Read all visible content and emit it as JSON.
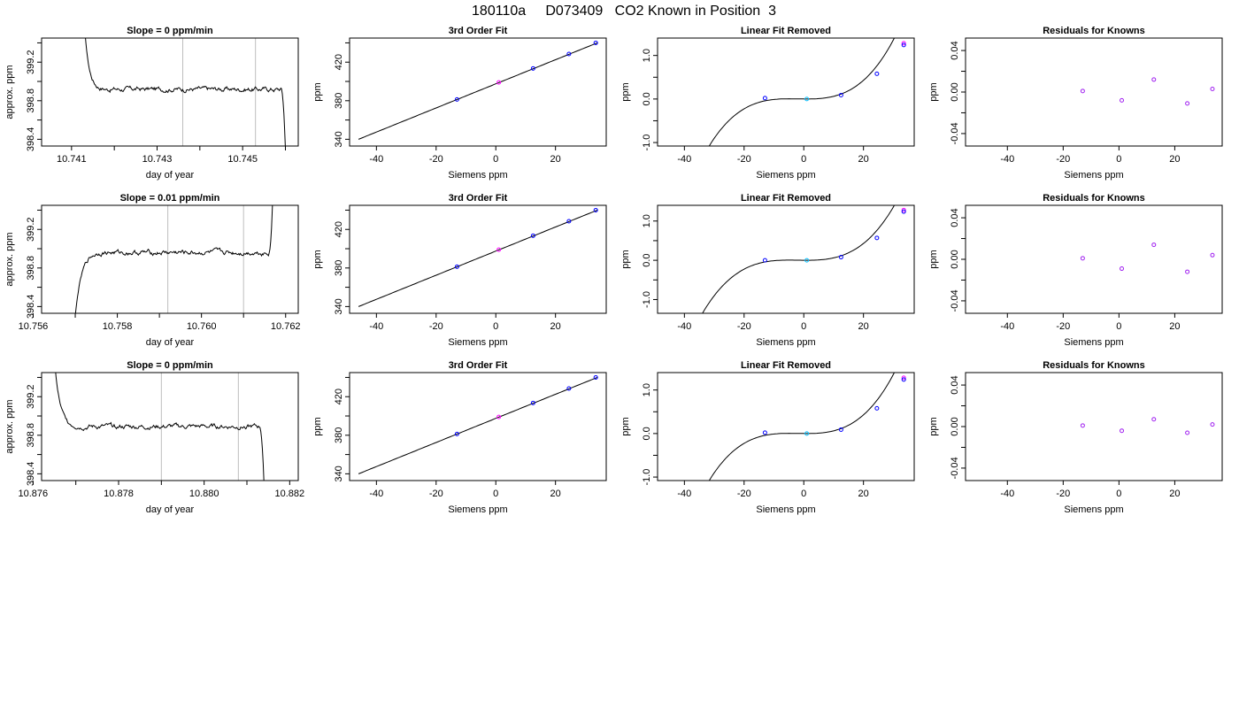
{
  "page_title": "180110a     D073409   CO2 Known in Position  3",
  "colors": {
    "line": "#000000",
    "marker_blue": "#0000ff",
    "marker_violet": "#a020f0",
    "marker_magenta": "#ff00ff",
    "marker_cyan": "#00bfff",
    "window_line": "#bebebe"
  },
  "chart_data": [
    {
      "type": "line",
      "row": 0,
      "col": 0,
      "title": "Slope =  0  ppm/min",
      "xlabel": "day of year",
      "ylabel": "approx. ppm",
      "xlim": [
        10.7403,
        10.7463
      ],
      "ylim": [
        398.33,
        399.45
      ],
      "xticks": [
        10.741,
        10.742,
        10.743,
        10.744,
        10.745,
        10.746
      ],
      "xtick_labels": [
        "10.741",
        "",
        "10.743",
        "",
        "10.745",
        ""
      ],
      "yticks": [
        398.4,
        398.6,
        398.8,
        399.0,
        399.2,
        399.4
      ],
      "ytick_labels": [
        "398.4",
        "",
        "398.8",
        "",
        "399.2",
        ""
      ],
      "window": [
        10.7436,
        10.7453
      ],
      "trace": {
        "start": 10.7413,
        "settle": 10.7418,
        "end_hold": 10.7459,
        "end": 10.746,
        "level": 398.92,
        "high": 399.6,
        "low": 398.3
      }
    },
    {
      "type": "scatter",
      "row": 0,
      "col": 1,
      "title": "3rd Order Fit",
      "xlabel": "Siemens ppm",
      "ylabel": "ppm",
      "xlim": [
        -49,
        37
      ],
      "ylim": [
        333,
        445
      ],
      "xticks": [
        -40,
        -20,
        0,
        20
      ],
      "xtick_labels": [
        "-40",
        "-20",
        "0",
        "20"
      ],
      "yticks": [
        340,
        360,
        380,
        400,
        420,
        440
      ],
      "ytick_labels": [
        "340",
        "",
        "380",
        "",
        "420",
        ""
      ],
      "curve": {
        "x0": -46,
        "x1": 34,
        "y0": 340,
        "y1": 440
      },
      "points": [
        {
          "x": -13.0,
          "y": 381.3,
          "color": "marker_blue"
        },
        {
          "x": 1.0,
          "y": 399.0,
          "color": "marker_magenta"
        },
        {
          "x": 12.5,
          "y": 413.5,
          "color": "marker_blue"
        },
        {
          "x": 24.5,
          "y": 428.5,
          "color": "marker_blue"
        },
        {
          "x": 33.5,
          "y": 440.0,
          "color": "marker_blue"
        }
      ]
    },
    {
      "type": "scatter",
      "row": 0,
      "col": 2,
      "title": "Linear Fit Removed",
      "xlabel": "Siemens ppm",
      "ylabel": "ppm",
      "xlim": [
        -49,
        37
      ],
      "ylim": [
        -1.08,
        1.4
      ],
      "xticks": [
        -40,
        -20,
        0,
        20
      ],
      "xtick_labels": [
        "-40",
        "-20",
        "0",
        "20"
      ],
      "yticks": [
        -1.0,
        -0.5,
        0.0,
        0.5,
        1.0
      ],
      "ytick_labels": [
        "-1.0",
        "",
        "0.0",
        "",
        "1.0"
      ],
      "curve": {
        "x0": -46,
        "x1": 33.5,
        "a": 4.25e-05,
        "shift": 2.5,
        "offset": 0.0
      },
      "points": [
        {
          "x": -13.0,
          "y": 0.02,
          "color": "marker_blue"
        },
        {
          "x": 1.0,
          "y": 0.0,
          "color": "marker_cyan"
        },
        {
          "x": 12.5,
          "y": 0.09,
          "color": "marker_blue"
        },
        {
          "x": 24.5,
          "y": 0.58,
          "color": "marker_blue"
        },
        {
          "x": 33.5,
          "y": 1.28,
          "color": "marker_magenta"
        },
        {
          "x": 33.5,
          "y": 1.24,
          "color": "marker_blue"
        }
      ]
    },
    {
      "type": "scatter",
      "row": 0,
      "col": 3,
      "title": "Residuals for Knowns",
      "xlabel": "Siemens ppm",
      "ylabel": "ppm",
      "xlim": [
        -55,
        37
      ],
      "ylim": [
        -0.052,
        0.052
      ],
      "xticks": [
        -40,
        -20,
        0,
        20
      ],
      "xtick_labels": [
        "-40",
        "-20",
        "0",
        "20"
      ],
      "yticks": [
        -0.04,
        -0.02,
        0.0,
        0.02,
        0.04
      ],
      "ytick_labels": [
        "-0.04",
        "",
        "0.00",
        "",
        "0.04"
      ],
      "points": [
        {
          "x": -13.0,
          "y": 0.001,
          "color": "marker_violet"
        },
        {
          "x": 1.0,
          "y": -0.008,
          "color": "marker_violet"
        },
        {
          "x": 12.5,
          "y": 0.012,
          "color": "marker_violet"
        },
        {
          "x": 24.5,
          "y": -0.011,
          "color": "marker_violet"
        },
        {
          "x": 33.5,
          "y": 0.003,
          "color": "marker_violet"
        }
      ]
    },
    {
      "type": "line",
      "row": 1,
      "col": 0,
      "title": "Slope =  0.01  ppm/min",
      "xlabel": "day of year",
      "ylabel": "approx. ppm",
      "xlim": [
        10.7562,
        10.7623
      ],
      "ylim": [
        398.33,
        399.45
      ],
      "xticks": [
        10.756,
        10.757,
        10.758,
        10.759,
        10.76,
        10.761,
        10.762
      ],
      "xtick_labels": [
        "10.756",
        "",
        "10.758",
        "",
        "10.760",
        "",
        "10.762"
      ],
      "yticks": [
        398.4,
        398.6,
        398.8,
        399.0,
        399.2,
        399.4
      ],
      "ytick_labels": [
        "398.4",
        "",
        "398.8",
        "",
        "399.2",
        ""
      ],
      "window": [
        10.7592,
        10.761
      ],
      "trace": {
        "start": 10.757,
        "settle": 10.7576,
        "end_hold": 10.7616,
        "end": 10.7617,
        "level": 398.96,
        "high": 399.6,
        "low": 398.3,
        "rising": true
      }
    },
    {
      "type": "scatter",
      "row": 1,
      "col": 1,
      "title": "3rd Order Fit",
      "xlabel": "Siemens ppm",
      "ylabel": "ppm",
      "xlim": [
        -49,
        37
      ],
      "ylim": [
        333,
        445
      ],
      "xticks": [
        -40,
        -20,
        0,
        20
      ],
      "xtick_labels": [
        "-40",
        "-20",
        "0",
        "20"
      ],
      "yticks": [
        340,
        360,
        380,
        400,
        420,
        440
      ],
      "ytick_labels": [
        "340",
        "",
        "380",
        "",
        "420",
        ""
      ],
      "curve": {
        "x0": -46,
        "x1": 34,
        "y0": 340,
        "y1": 440
      },
      "points": [
        {
          "x": -13.0,
          "y": 381.3,
          "color": "marker_blue"
        },
        {
          "x": 1.0,
          "y": 399.0,
          "color": "marker_magenta"
        },
        {
          "x": 12.5,
          "y": 413.5,
          "color": "marker_blue"
        },
        {
          "x": 24.5,
          "y": 428.5,
          "color": "marker_blue"
        },
        {
          "x": 33.5,
          "y": 440.0,
          "color": "marker_blue"
        }
      ]
    },
    {
      "type": "scatter",
      "row": 1,
      "col": 2,
      "title": "Linear Fit Removed",
      "xlabel": "Siemens ppm",
      "ylabel": "ppm",
      "xlim": [
        -49,
        37
      ],
      "ylim": [
        -1.35,
        1.4
      ],
      "xticks": [
        -40,
        -20,
        0,
        20
      ],
      "xtick_labels": [
        "-40",
        "-20",
        "0",
        "20"
      ],
      "yticks": [
        -1.0,
        -0.5,
        0.0,
        0.5,
        1.0
      ],
      "ytick_labels": [
        "-1.0",
        "",
        "0.0",
        "",
        "1.0"
      ],
      "curve": {
        "x0": -45,
        "x1": 33.5,
        "a": 4.25e-05,
        "shift": 2.5,
        "offset": 0.0
      },
      "points": [
        {
          "x": -13.0,
          "y": 0.0,
          "color": "marker_blue"
        },
        {
          "x": 1.0,
          "y": 0.0,
          "color": "marker_cyan"
        },
        {
          "x": 12.5,
          "y": 0.08,
          "color": "marker_blue"
        },
        {
          "x": 24.5,
          "y": 0.57,
          "color": "marker_blue"
        },
        {
          "x": 33.5,
          "y": 1.28,
          "color": "marker_magenta"
        },
        {
          "x": 33.5,
          "y": 1.24,
          "color": "marker_blue"
        }
      ]
    },
    {
      "type": "scatter",
      "row": 1,
      "col": 3,
      "title": "Residuals for Knowns",
      "xlabel": "Siemens ppm",
      "ylabel": "ppm",
      "xlim": [
        -55,
        37
      ],
      "ylim": [
        -0.052,
        0.052
      ],
      "xticks": [
        -40,
        -20,
        0,
        20
      ],
      "xtick_labels": [
        "-40",
        "-20",
        "0",
        "20"
      ],
      "yticks": [
        -0.04,
        -0.02,
        0.0,
        0.02,
        0.04
      ],
      "ytick_labels": [
        "-0.04",
        "",
        "0.00",
        "",
        "0.04"
      ],
      "points": [
        {
          "x": -13.0,
          "y": 0.001,
          "color": "marker_violet"
        },
        {
          "x": 1.0,
          "y": -0.009,
          "color": "marker_violet"
        },
        {
          "x": 12.5,
          "y": 0.014,
          "color": "marker_violet"
        },
        {
          "x": 24.5,
          "y": -0.012,
          "color": "marker_violet"
        },
        {
          "x": 33.5,
          "y": 0.004,
          "color": "marker_violet"
        }
      ]
    },
    {
      "type": "line",
      "row": 2,
      "col": 0,
      "title": "Slope =  0  ppm/min",
      "xlabel": "day of year",
      "ylabel": "approx. ppm",
      "xlim": [
        10.8762,
        10.8822
      ],
      "ylim": [
        398.33,
        399.45
      ],
      "xticks": [
        10.876,
        10.877,
        10.878,
        10.879,
        10.88,
        10.881,
        10.882
      ],
      "xtick_labels": [
        "10.876",
        "",
        "10.878",
        "",
        "10.880",
        "",
        "10.882"
      ],
      "yticks": [
        398.4,
        398.6,
        398.8,
        399.0,
        399.2,
        399.4
      ],
      "ytick_labels": [
        "398.4",
        "",
        "398.8",
        "",
        "399.2",
        ""
      ],
      "window": [
        10.879,
        10.8808
      ],
      "trace": {
        "start": 10.8765,
        "settle": 10.8771,
        "end_hold": 10.8813,
        "end": 10.8814,
        "level": 398.89,
        "high": 399.6,
        "low": 398.3
      }
    },
    {
      "type": "scatter",
      "row": 2,
      "col": 1,
      "title": "3rd Order Fit",
      "xlabel": "Siemens ppm",
      "ylabel": "ppm",
      "xlim": [
        -49,
        37
      ],
      "ylim": [
        333,
        445
      ],
      "xticks": [
        -40,
        -20,
        0,
        20
      ],
      "xtick_labels": [
        "-40",
        "-20",
        "0",
        "20"
      ],
      "yticks": [
        340,
        360,
        380,
        400,
        420,
        440
      ],
      "ytick_labels": [
        "340",
        "",
        "380",
        "",
        "420",
        ""
      ],
      "curve": {
        "x0": -46,
        "x1": 34,
        "y0": 340,
        "y1": 440
      },
      "points": [
        {
          "x": -13.0,
          "y": 381.3,
          "color": "marker_blue"
        },
        {
          "x": 1.0,
          "y": 399.0,
          "color": "marker_magenta"
        },
        {
          "x": 12.5,
          "y": 413.5,
          "color": "marker_blue"
        },
        {
          "x": 24.5,
          "y": 428.5,
          "color": "marker_blue"
        },
        {
          "x": 33.5,
          "y": 440.0,
          "color": "marker_blue"
        }
      ]
    },
    {
      "type": "scatter",
      "row": 2,
      "col": 2,
      "title": "Linear Fit Removed",
      "xlabel": "Siemens ppm",
      "ylabel": "ppm",
      "xlim": [
        -49,
        37
      ],
      "ylim": [
        -1.08,
        1.4
      ],
      "xticks": [
        -40,
        -20,
        0,
        20
      ],
      "xtick_labels": [
        "-40",
        "-20",
        "0",
        "20"
      ],
      "yticks": [
        -1.0,
        -0.5,
        0.0,
        0.5,
        1.0
      ],
      "ytick_labels": [
        "-1.0",
        "",
        "0.0",
        "",
        "1.0"
      ],
      "curve": {
        "x0": -46,
        "x1": 33.5,
        "a": 4.25e-05,
        "shift": 2.5,
        "offset": 0.0
      },
      "points": [
        {
          "x": -13.0,
          "y": 0.02,
          "color": "marker_blue"
        },
        {
          "x": 1.0,
          "y": 0.0,
          "color": "marker_cyan"
        },
        {
          "x": 12.5,
          "y": 0.09,
          "color": "marker_blue"
        },
        {
          "x": 24.5,
          "y": 0.58,
          "color": "marker_blue"
        },
        {
          "x": 33.5,
          "y": 1.28,
          "color": "marker_magenta"
        },
        {
          "x": 33.5,
          "y": 1.24,
          "color": "marker_blue"
        }
      ]
    },
    {
      "type": "scatter",
      "row": 2,
      "col": 3,
      "title": "Residuals for Knowns",
      "xlabel": "Siemens ppm",
      "ylabel": "ppm",
      "xlim": [
        -55,
        37
      ],
      "ylim": [
        -0.052,
        0.052
      ],
      "xticks": [
        -40,
        -20,
        0,
        20
      ],
      "xtick_labels": [
        "-40",
        "-20",
        "0",
        "20"
      ],
      "yticks": [
        -0.04,
        -0.02,
        0.0,
        0.02,
        0.04
      ],
      "ytick_labels": [
        "-0.04",
        "",
        "0.00",
        "",
        "0.04"
      ],
      "points": [
        {
          "x": -13.0,
          "y": 0.001,
          "color": "marker_violet"
        },
        {
          "x": 1.0,
          "y": -0.004,
          "color": "marker_violet"
        },
        {
          "x": 12.5,
          "y": 0.007,
          "color": "marker_violet"
        },
        {
          "x": 24.5,
          "y": -0.006,
          "color": "marker_violet"
        },
        {
          "x": 33.5,
          "y": 0.002,
          "color": "marker_violet"
        }
      ]
    }
  ]
}
